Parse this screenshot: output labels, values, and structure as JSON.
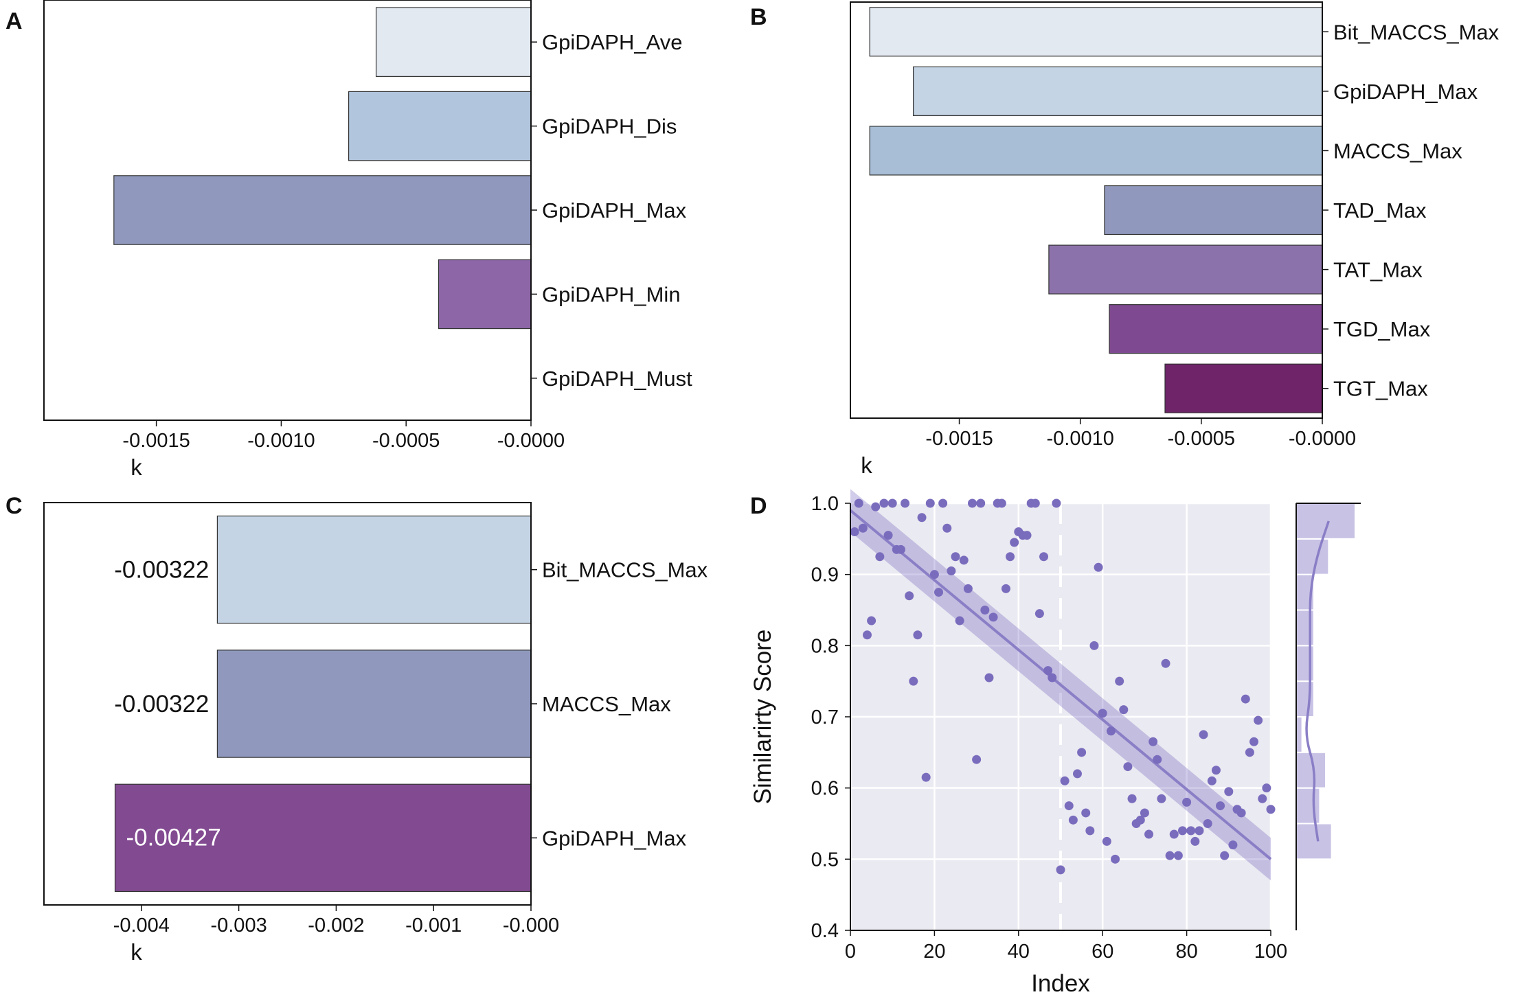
{
  "chart_data": [
    {
      "panel": "A",
      "type": "bar",
      "orientation": "horizontal",
      "xlabel": "k",
      "xlim": [
        -0.00195,
        0.0
      ],
      "xticks": [
        -0.0015,
        -0.001,
        -0.0005,
        -0.0
      ],
      "xtick_labels": [
        "-0.0015",
        "-0.0010",
        "-0.0005",
        "-0.0000"
      ],
      "categories": [
        "GpiDAPH_Ave",
        "GpiDAPH_Dis",
        "GpiDAPH_Max",
        "GpiDAPH_Min",
        "GpiDAPH_Must"
      ],
      "values": [
        -0.00062,
        -0.00073,
        -0.00167,
        -0.00037,
        0.0
      ],
      "colors": [
        "#e2e9f1",
        "#b1c5dc",
        "#9099bd",
        "#8c66a6",
        "#7f3f8f"
      ]
    },
    {
      "panel": "B",
      "type": "bar",
      "orientation": "horizontal",
      "xlabel": "k",
      "xlim": [
        -0.00195,
        0.0
      ],
      "xticks": [
        -0.0015,
        -0.001,
        -0.0005,
        -0.0
      ],
      "xtick_labels": [
        "-0.0015",
        "-0.0010",
        "-0.0005",
        "-0.0000"
      ],
      "categories": [
        "Bit_MACCS_Max",
        "GpiDAPH_Max",
        "MACCS_Max",
        "TAD_Max",
        "TAT_Max",
        "TGD_Max",
        "TGT_Max"
      ],
      "values": [
        -0.00187,
        -0.00169,
        -0.00187,
        -0.0009,
        -0.00113,
        -0.00088,
        -0.00065
      ],
      "colors": [
        "#e3e9f1",
        "#c5d4e5",
        "#a8bed6",
        "#9099bd",
        "#8c72aa",
        "#7e4990",
        "#6f2469"
      ]
    },
    {
      "panel": "C",
      "type": "bar",
      "orientation": "horizontal",
      "xlabel": "k",
      "xlim": [
        -0.005,
        0.0
      ],
      "xticks": [
        -0.004,
        -0.003,
        -0.002,
        -0.001,
        0.0
      ],
      "xtick_labels": [
        "-0.004",
        "-0.003",
        "-0.002",
        "-0.001",
        "-0.000"
      ],
      "categories": [
        "Bit_MACCS_Max",
        "MACCS_Max",
        "GpiDAPH_Max"
      ],
      "values": [
        -0.00322,
        -0.00322,
        -0.00427
      ],
      "data_labels": [
        "-0.00322",
        "-0.00322",
        "-0.00427"
      ],
      "colors": [
        "#c5d4e5",
        "#9099bd",
        "#824b91"
      ]
    },
    {
      "panel": "D",
      "type": "scatter",
      "xlabel": "Index",
      "ylabel": "Similarirty Score",
      "xlim": [
        0,
        100
      ],
      "ylim": [
        0.4,
        1.0
      ],
      "xticks": [
        0,
        20,
        40,
        60,
        80,
        100
      ],
      "xtick_labels": [
        "0",
        "20",
        "40",
        "60",
        "80",
        "100"
      ],
      "yticks": [
        0.4,
        0.5,
        0.6,
        0.7,
        0.8,
        0.9,
        1.0
      ],
      "ytick_labels": [
        "0.4",
        "0.5",
        "0.6",
        "0.7",
        "0.8",
        "0.9",
        "1.0"
      ],
      "grid": true,
      "vline_x": 50,
      "regression": {
        "x": [
          0,
          100
        ],
        "y": [
          0.99,
          0.5
        ],
        "band": 0.03
      },
      "x": [
        1,
        2,
        3,
        4,
        5,
        6,
        7,
        8,
        9,
        10,
        11,
        12,
        13,
        14,
        15,
        16,
        17,
        18,
        19,
        20,
        21,
        22,
        23,
        24,
        25,
        26,
        27,
        28,
        29,
        30,
        31,
        32,
        33,
        34,
        35,
        36,
        37,
        38,
        39,
        40,
        41,
        42,
        43,
        44,
        45,
        46,
        47,
        48,
        49,
        50,
        51,
        52,
        53,
        54,
        55,
        56,
        57,
        58,
        59,
        60,
        61,
        62,
        63,
        64,
        65,
        66,
        67,
        68,
        69,
        70,
        71,
        72,
        73,
        74,
        75,
        76,
        77,
        78,
        79,
        80,
        81,
        82,
        83,
        84,
        85,
        86,
        87,
        88,
        89,
        90,
        91,
        92,
        93,
        94,
        95,
        96,
        97,
        98,
        99,
        100
      ],
      "y": [
        0.96,
        1.0,
        0.965,
        0.815,
        0.835,
        0.995,
        0.925,
        1.0,
        0.955,
        1.0,
        0.935,
        0.935,
        1.0,
        0.87,
        0.75,
        0.815,
        0.98,
        0.615,
        1.0,
        0.9,
        0.875,
        1.0,
        0.965,
        0.905,
        0.925,
        0.835,
        0.92,
        0.88,
        1.0,
        0.64,
        1.0,
        0.85,
        0.755,
        0.84,
        1.0,
        1.0,
        0.88,
        0.925,
        0.945,
        0.96,
        0.955,
        0.955,
        1.0,
        1.0,
        0.845,
        0.925,
        0.765,
        0.755,
        1.0,
        0.485,
        0.61,
        0.575,
        0.555,
        0.62,
        0.65,
        0.565,
        0.54,
        0.8,
        0.91,
        0.705,
        0.525,
        0.68,
        0.5,
        0.75,
        0.71,
        0.63,
        0.585,
        0.55,
        0.555,
        0.565,
        0.535,
        0.665,
        0.64,
        0.585,
        0.775,
        0.505,
        0.535,
        0.505,
        0.54,
        0.58,
        0.54,
        0.525,
        0.54,
        0.675,
        0.55,
        0.61,
        0.625,
        0.575,
        0.505,
        0.595,
        0.52,
        0.57,
        0.565,
        0.725,
        0.65,
        0.665,
        0.695,
        0.585,
        0.6,
        0.57
      ],
      "histogram": {
        "bins": [
          0.45,
          0.5,
          0.55,
          0.6,
          0.65,
          0.7,
          0.75,
          0.8,
          0.85,
          0.9,
          0.95,
          1.0
        ],
        "counts": [
          0,
          12,
          8,
          10,
          2,
          6,
          6,
          6,
          6,
          11,
          20
        ]
      }
    }
  ],
  "panel_labels": {
    "A": "A",
    "B": "B",
    "C": "C",
    "D": "D"
  }
}
